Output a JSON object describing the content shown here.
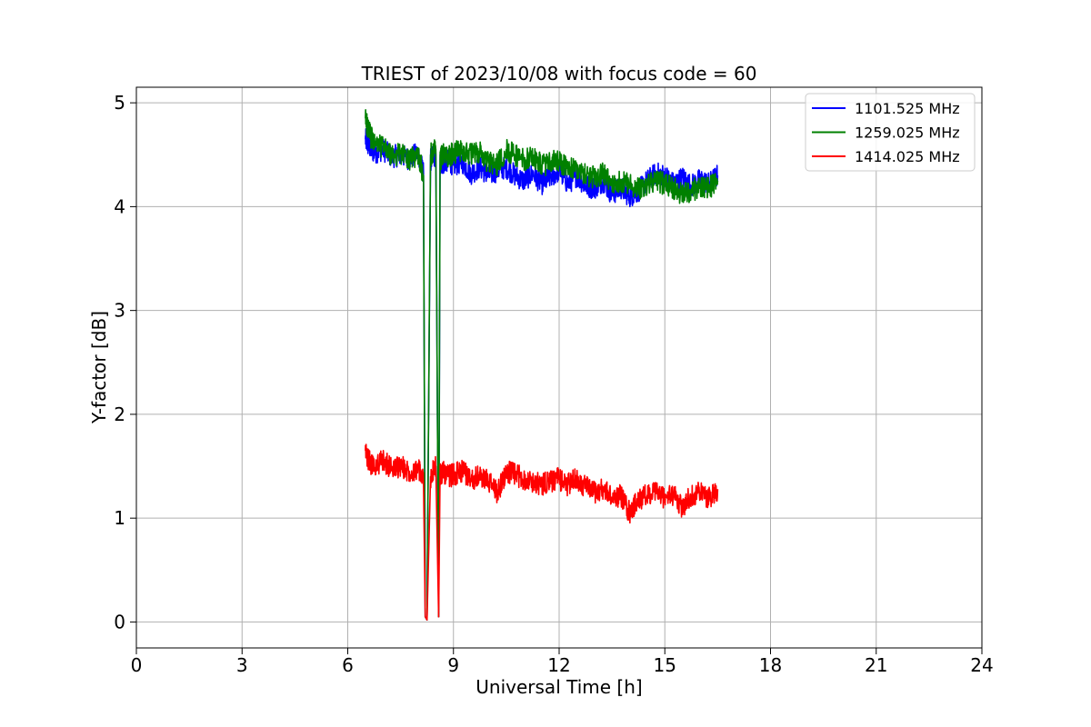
{
  "chart_data": {
    "type": "line",
    "title": "TRIEST of 2023/10/08 with focus code = 60",
    "xlabel": "Universal Time [h]",
    "ylabel": "Y-factor [dB]",
    "xlim": [
      0,
      24
    ],
    "ylim": [
      -0.25,
      5.15
    ],
    "x_ticks": [
      0,
      3,
      6,
      9,
      12,
      15,
      18,
      21,
      24
    ],
    "y_ticks": [
      0,
      1,
      2,
      3,
      4,
      5
    ],
    "grid": true,
    "legend_position": "top-right",
    "series": [
      {
        "name": "1101.525 MHz",
        "color": "#0000ff",
        "x": [
          6.5,
          6.6,
          6.75,
          7.0,
          7.25,
          7.5,
          7.75,
          8.0,
          8.15,
          8.2,
          8.25,
          8.35,
          8.5,
          8.58,
          8.62,
          8.7,
          8.85,
          9.0,
          9.25,
          9.5,
          9.75,
          10.0,
          10.25,
          10.5,
          10.75,
          11.0,
          11.25,
          11.5,
          11.75,
          12.0,
          12.25,
          12.5,
          12.75,
          13.0,
          13.25,
          13.5,
          13.75,
          14.0,
          14.25,
          14.5,
          14.75,
          15.0,
          15.25,
          15.5,
          15.75,
          16.0,
          16.25,
          16.5
        ],
        "y": [
          4.65,
          4.58,
          4.52,
          4.55,
          4.48,
          4.5,
          4.46,
          4.52,
          4.32,
          0.05,
          0.02,
          4.45,
          4.5,
          0.05,
          4.4,
          4.42,
          4.45,
          4.4,
          4.43,
          4.32,
          4.38,
          4.3,
          4.35,
          4.38,
          4.3,
          4.25,
          4.32,
          4.22,
          4.28,
          4.35,
          4.22,
          4.3,
          4.2,
          4.18,
          4.25,
          4.12,
          4.18,
          4.1,
          4.15,
          4.25,
          4.32,
          4.3,
          4.22,
          4.28,
          4.2,
          4.26,
          4.22,
          4.3
        ]
      },
      {
        "name": "1259.025 MHz",
        "color": "#008000",
        "x": [
          6.5,
          6.6,
          6.75,
          7.0,
          7.25,
          7.5,
          7.75,
          8.0,
          8.15,
          8.2,
          8.25,
          8.35,
          8.5,
          8.58,
          8.62,
          8.7,
          8.85,
          9.0,
          9.25,
          9.5,
          9.75,
          10.0,
          10.25,
          10.5,
          10.75,
          11.0,
          11.25,
          11.5,
          11.75,
          12.0,
          12.25,
          12.5,
          12.75,
          13.0,
          13.25,
          13.5,
          13.75,
          14.0,
          14.25,
          14.5,
          14.75,
          15.0,
          15.25,
          15.5,
          15.75,
          16.0,
          16.25,
          16.5
        ],
        "y": [
          4.85,
          4.72,
          4.6,
          4.58,
          4.48,
          4.52,
          4.45,
          4.5,
          4.3,
          0.05,
          0.02,
          4.5,
          4.55,
          0.05,
          4.45,
          4.5,
          4.48,
          4.52,
          4.55,
          4.5,
          4.52,
          4.42,
          4.4,
          4.55,
          4.5,
          4.45,
          4.48,
          4.4,
          4.42,
          4.45,
          4.35,
          4.38,
          4.3,
          4.28,
          4.32,
          4.2,
          4.25,
          4.22,
          4.18,
          4.2,
          4.25,
          4.22,
          4.18,
          4.12,
          4.15,
          4.2,
          4.18,
          4.25
        ]
      },
      {
        "name": "1414.025 MHz",
        "color": "#ff0000",
        "x": [
          6.5,
          6.6,
          6.75,
          7.0,
          7.25,
          7.5,
          7.75,
          8.0,
          8.15,
          8.2,
          8.25,
          8.35,
          8.5,
          8.58,
          8.62,
          8.7,
          8.85,
          9.0,
          9.25,
          9.5,
          9.75,
          10.0,
          10.25,
          10.5,
          10.75,
          11.0,
          11.25,
          11.5,
          11.75,
          12.0,
          12.25,
          12.5,
          12.75,
          13.0,
          13.25,
          13.5,
          13.75,
          14.0,
          14.25,
          14.5,
          14.75,
          15.0,
          15.25,
          15.5,
          15.75,
          16.0,
          16.25,
          16.5
        ],
        "y": [
          1.65,
          1.55,
          1.5,
          1.55,
          1.48,
          1.5,
          1.45,
          1.48,
          1.35,
          0.05,
          0.02,
          1.4,
          1.5,
          0.05,
          1.42,
          1.45,
          1.4,
          1.42,
          1.45,
          1.38,
          1.4,
          1.35,
          1.25,
          1.45,
          1.42,
          1.38,
          1.35,
          1.32,
          1.35,
          1.38,
          1.32,
          1.38,
          1.3,
          1.25,
          1.28,
          1.2,
          1.22,
          1.05,
          1.18,
          1.22,
          1.25,
          1.2,
          1.22,
          1.1,
          1.22,
          1.25,
          1.2,
          1.28
        ]
      }
    ]
  }
}
